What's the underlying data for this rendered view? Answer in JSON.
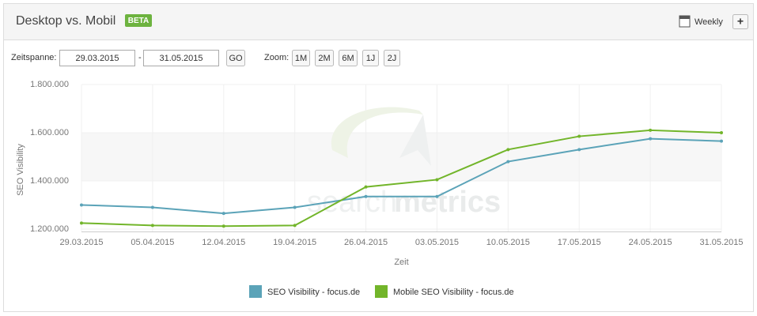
{
  "header": {
    "title": "Desktop vs. Mobil",
    "badge": "BETA",
    "weekly": "Weekly",
    "add": "+"
  },
  "controls": {
    "range_label": "Zeitspanne:",
    "from": "29.03.2015",
    "separator": "-",
    "to": "31.05.2015",
    "go": "GO",
    "zoom_label": "Zoom:",
    "zoom": [
      "1M",
      "2M",
      "6M",
      "1J",
      "2J"
    ]
  },
  "watermark": [
    "search",
    "metrics"
  ],
  "chart_data": {
    "type": "line",
    "y_label": "SEO Visibility",
    "x_label": "Zeit",
    "categories": [
      "29.03.2015",
      "05.04.2015",
      "12.04.2015",
      "19.04.2015",
      "26.04.2015",
      "03.05.2015",
      "10.05.2015",
      "17.05.2015",
      "24.05.2015",
      "31.05.2015"
    ],
    "series": [
      {
        "name": "SEO Visibility - focus.de",
        "color": "#5ba3b8",
        "values": [
          1300000,
          1290000,
          1265000,
          1290000,
          1335000,
          1335000,
          1480000,
          1530000,
          1575000,
          1565000
        ]
      },
      {
        "name": "Mobile SEO Visibility - focus.de",
        "color": "#72b52a",
        "values": [
          1225000,
          1215000,
          1212000,
          1215000,
          1375000,
          1405000,
          1530000,
          1585000,
          1610000,
          1600000
        ]
      }
    ],
    "ylim": [
      1190000,
      1800000
    ],
    "yticks": [
      {
        "value": 1200000,
        "label": "1.200.000"
      },
      {
        "value": 1400000,
        "label": "1.400.000"
      },
      {
        "value": 1600000,
        "label": "1.600.000"
      },
      {
        "value": 1800000,
        "label": "1.800.000"
      }
    ],
    "grid": true,
    "legend": "bottom"
  }
}
